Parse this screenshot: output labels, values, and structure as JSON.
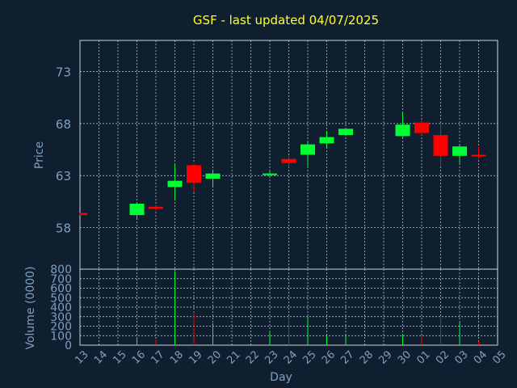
{
  "title": "GSF - last updated 04/07/2025",
  "colors": {
    "background": "#0f1f30",
    "frame": "#c8d4e0",
    "grid": "#c8d4e0",
    "title": "#ffff33",
    "axis_text": "#7f9fbf",
    "up": "#00ff33",
    "down": "#ff0000"
  },
  "chart_data": {
    "type": "candlestick",
    "xlabel": "Day",
    "ylabel": "Price",
    "ylim": [
      54,
      76
    ],
    "yticks": [
      58,
      63,
      68,
      73
    ],
    "volume_ylabel": "Volume (0000)",
    "volume_ylim": [
      0,
      800
    ],
    "volume_ticks": [
      0,
      100,
      200,
      300,
      400,
      500,
      600,
      700,
      800
    ],
    "days": [
      "13",
      "14",
      "15",
      "16",
      "17",
      "18",
      "19",
      "20",
      "21",
      "22",
      "23",
      "24",
      "25",
      "26",
      "27",
      "28",
      "29",
      "30",
      "01",
      "02",
      "03",
      "04",
      "05"
    ],
    "candles": [
      {
        "day": "13",
        "open": 59.4,
        "close": 59.2,
        "high": 59.4,
        "low": 59.2,
        "volume": 0
      },
      {
        "day": "16",
        "open": 59.2,
        "close": 60.3,
        "high": 60.3,
        "low": 58.9,
        "volume": 80
      },
      {
        "day": "17",
        "open": 60.0,
        "close": 59.8,
        "high": 60.1,
        "low": 59.6,
        "volume": 60
      },
      {
        "day": "18",
        "open": 61.9,
        "close": 62.5,
        "high": 64.1,
        "low": 60.6,
        "volume": 780
      },
      {
        "day": "19",
        "open": 64.0,
        "close": 62.3,
        "high": 64.2,
        "low": 61.4,
        "volume": 330
      },
      {
        "day": "20",
        "open": 62.7,
        "close": 63.2,
        "high": 63.5,
        "low": 62.0,
        "volume": 230
      },
      {
        "day": "23",
        "open": 63.2,
        "close": 63.2,
        "high": 63.4,
        "low": 62.8,
        "volume": 140
      },
      {
        "day": "24",
        "open": 64.6,
        "close": 64.2,
        "high": 64.9,
        "low": 63.8,
        "volume": 280
      },
      {
        "day": "25",
        "open": 65.0,
        "close": 66.0,
        "high": 66.2,
        "low": 63.9,
        "volume": 300
      },
      {
        "day": "26",
        "open": 66.1,
        "close": 66.7,
        "high": 67.3,
        "low": 65.7,
        "volume": 100
      },
      {
        "day": "27",
        "open": 66.9,
        "close": 67.5,
        "high": 67.6,
        "low": 66.8,
        "volume": 120
      },
      {
        "day": "30",
        "open": 66.8,
        "close": 67.9,
        "high": 69.1,
        "low": 66.7,
        "volume": 110
      },
      {
        "day": "01",
        "open": 68.1,
        "close": 67.1,
        "high": 68.3,
        "low": 66.9,
        "volume": 100
      },
      {
        "day": "02",
        "open": 66.9,
        "close": 64.9,
        "high": 68.1,
        "low": 63.9,
        "volume": 290
      },
      {
        "day": "03",
        "open": 64.9,
        "close": 65.8,
        "high": 66.0,
        "low": 64.2,
        "volume": 240
      },
      {
        "day": "04",
        "open": 65.0,
        "close": 64.9,
        "high": 65.8,
        "low": 64.6,
        "volume": 40
      }
    ]
  }
}
